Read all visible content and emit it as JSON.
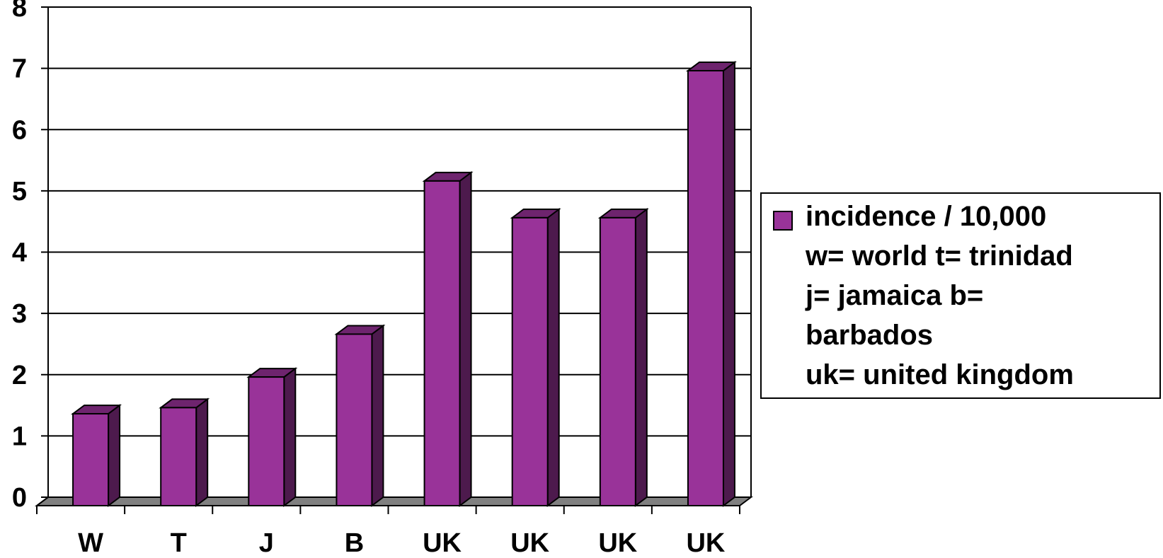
{
  "chart_data": {
    "type": "bar",
    "categories": [
      "W",
      "T",
      "J",
      "B",
      "UK",
      "UK",
      "UK",
      "UK"
    ],
    "series": [
      {
        "name": "incidence / 10,000\nw= world  t= trinidad\nj= jamaica  b=\nbarbados\nuk= united kingdom",
        "values": [
          1.5,
          1.6,
          2.1,
          2.8,
          5.3,
          4.7,
          4.7,
          7.1
        ]
      }
    ],
    "yticks": [
      "0",
      "1",
      "2",
      "3",
      "4",
      "5",
      "6",
      "7",
      "8"
    ],
    "ylim": [
      0,
      8
    ],
    "grid": true,
    "legend_position": "right",
    "colors": {
      "bar_front": "#993399",
      "bar_side": "#4d1a4d",
      "bar_top": "#6e246e",
      "floor": "#808080"
    }
  }
}
